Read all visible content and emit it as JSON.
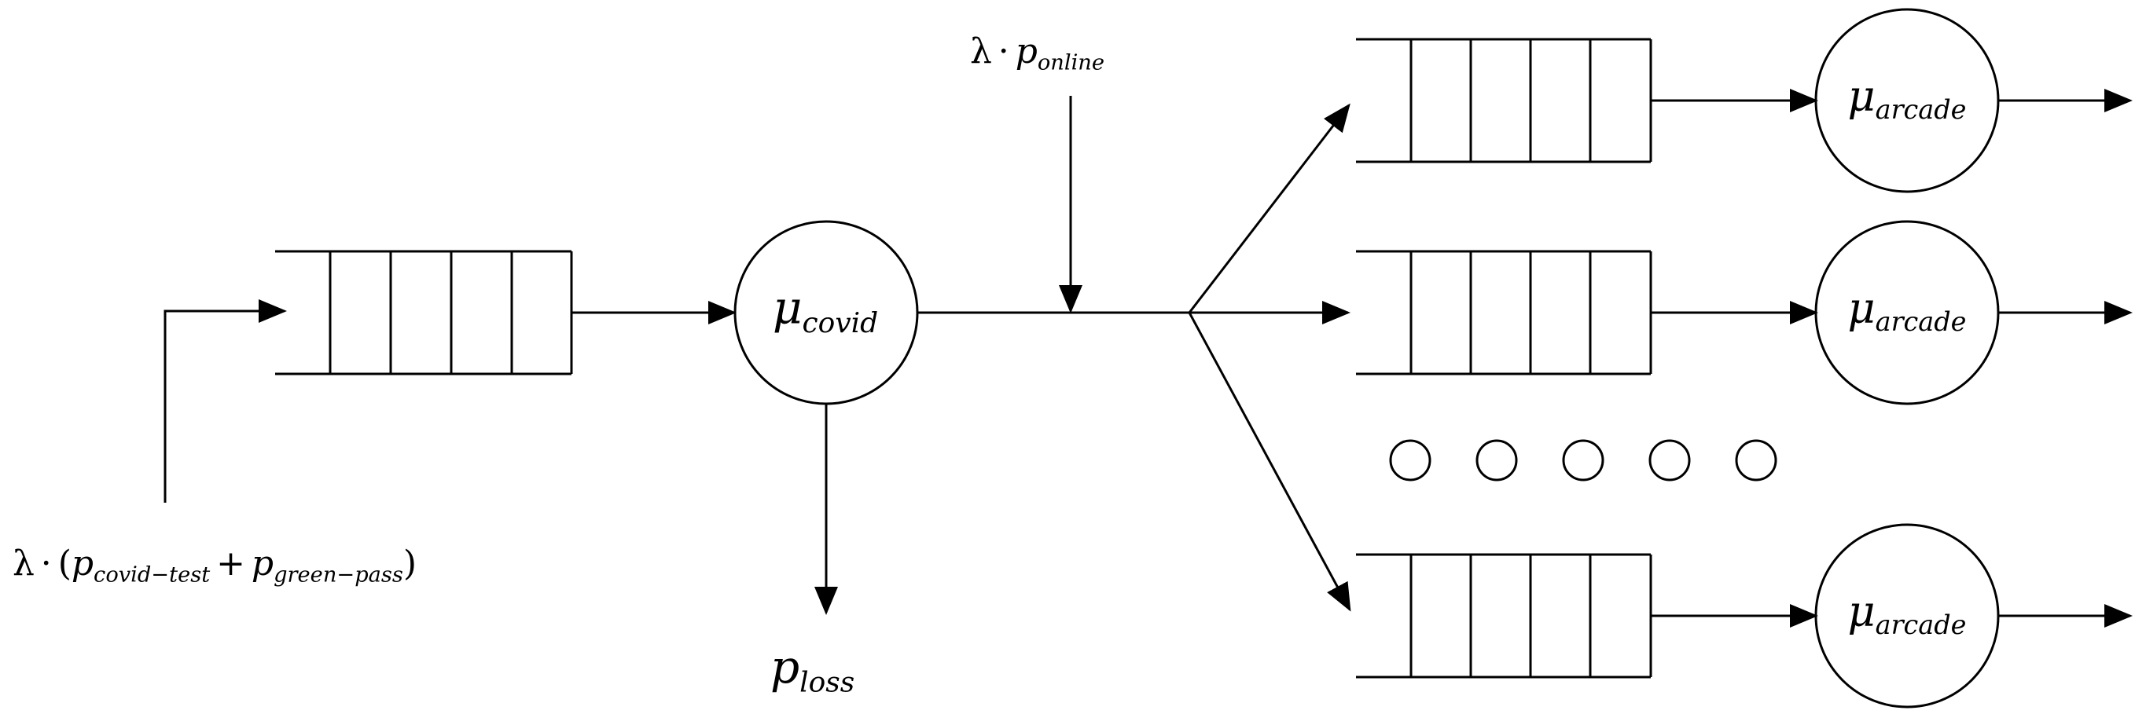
{
  "diagram": {
    "type": "queueing-network",
    "arrival": {
      "lambda": "λ",
      "dot": "·",
      "open": "(",
      "close": ")",
      "plus": "+",
      "p1": "p",
      "p1_sub": "covid−test",
      "p2": "p",
      "p2_sub": "green−pass"
    },
    "online": {
      "lambda": "λ",
      "dot": "·",
      "p": "p",
      "p_sub": "online"
    },
    "covid_server": {
      "mu": "μ",
      "sub": "covid"
    },
    "loss": {
      "p": "p",
      "sub": "loss"
    },
    "arcade_servers": [
      {
        "mu": "μ",
        "sub": "arcade"
      },
      {
        "mu": "μ",
        "sub": "arcade"
      },
      {
        "mu": "μ",
        "sub": "arcade"
      }
    ],
    "ellipsis_count": 5
  }
}
